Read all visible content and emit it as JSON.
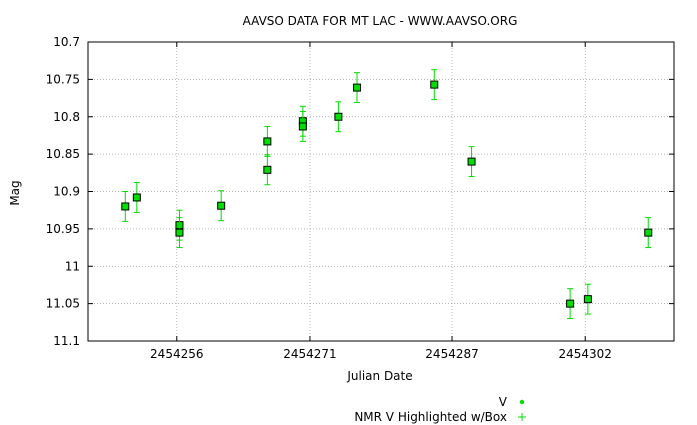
{
  "chart_data": {
    "type": "scatter",
    "title": "AAVSO DATA FOR MT LAC - WWW.AAVSO.ORG",
    "xlabel": "Julian Date",
    "ylabel": "Mag",
    "xlim": [
      2454246,
      2454312
    ],
    "ylim": [
      10.7,
      11.1
    ],
    "y_inverted": true,
    "grid": true,
    "legend_placement": "bottom-right",
    "x_ticks": [
      {
        "value": 2454256,
        "label": "2454256"
      },
      {
        "value": 2454271,
        "label": "2454271"
      },
      {
        "value": 2454287,
        "label": "2454287"
      },
      {
        "value": 2454302,
        "label": "2454302"
      }
    ],
    "y_ticks": [
      {
        "value": 10.7,
        "label": "10.7"
      },
      {
        "value": 10.75,
        "label": "10.75"
      },
      {
        "value": 10.8,
        "label": "10.8"
      },
      {
        "value": 10.85,
        "label": "10.85"
      },
      {
        "value": 10.9,
        "label": "10.9"
      },
      {
        "value": 10.95,
        "label": "10.95"
      },
      {
        "value": 11.0,
        "label": "11"
      },
      {
        "value": 11.05,
        "label": "11.05"
      },
      {
        "value": 11.1,
        "label": "11.1"
      }
    ],
    "series": [
      {
        "name": "V",
        "color": "#00dd00",
        "marker": "dot",
        "points": [
          {
            "x": 2454250.2,
            "y": 10.92,
            "err": 0.02
          },
          {
            "x": 2454251.5,
            "y": 10.908,
            "err": 0.02
          },
          {
            "x": 2454256.3,
            "y": 10.945,
            "err": 0.02
          },
          {
            "x": 2454256.3,
            "y": 10.955,
            "err": 0.02
          },
          {
            "x": 2454261.0,
            "y": 10.919,
            "err": 0.02
          },
          {
            "x": 2454266.2,
            "y": 10.871,
            "err": 0.02
          },
          {
            "x": 2454266.2,
            "y": 10.833,
            "err": 0.02
          },
          {
            "x": 2454270.2,
            "y": 10.806,
            "err": 0.02
          },
          {
            "x": 2454270.2,
            "y": 10.813,
            "err": 0.02
          },
          {
            "x": 2454274.2,
            "y": 10.8,
            "err": 0.02
          },
          {
            "x": 2454276.3,
            "y": 10.761,
            "err": 0.02
          },
          {
            "x": 2454285.0,
            "y": 10.757,
            "err": 0.02
          },
          {
            "x": 2454289.2,
            "y": 10.86,
            "err": 0.02
          },
          {
            "x": 2454300.3,
            "y": 11.05,
            "err": 0.02
          },
          {
            "x": 2454302.3,
            "y": 11.044,
            "err": 0.02
          },
          {
            "x": 2454309.1,
            "y": 10.955,
            "err": 0.02
          }
        ]
      },
      {
        "name": "NMR V Highlighted w/Box",
        "color": "#00dd00",
        "marker": "plus",
        "points": []
      }
    ],
    "colors": {
      "axis": "#000000",
      "grid": "#a0a0a0",
      "box": "#000000",
      "marker": "#00dd00"
    }
  }
}
